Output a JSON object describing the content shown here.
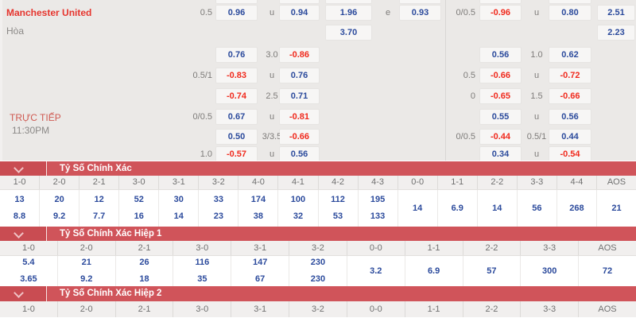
{
  "match": {
    "home": "Manchester United",
    "draw_label": "Hòa",
    "live_label": "TRỰC TIẾP",
    "time": "11:30PM"
  },
  "odds_grid": {
    "rows": [
      {
        "cells": [
          {
            "c": "B",
            "v": ""
          },
          {
            "c": "D",
            "v": ""
          },
          {
            "c": "E",
            "v": ""
          },
          {
            "c": "G",
            "v": ""
          },
          {
            "c": "I",
            "v": ""
          },
          {
            "c": "K",
            "v": ""
          }
        ]
      },
      {
        "cells": [
          {
            "c": "A",
            "v": "0.5",
            "t": "hdc"
          },
          {
            "c": "B",
            "v": "0.96",
            "t": "pos"
          },
          {
            "c": "C",
            "v": "u",
            "t": "hdc"
          },
          {
            "c": "D",
            "v": "0.94",
            "t": "pos"
          },
          {
            "c": "E",
            "v": "1.96",
            "t": "pos"
          },
          {
            "c": "F",
            "v": "e",
            "t": "hdc"
          },
          {
            "c": "G",
            "v": "0.93",
            "t": "pos"
          },
          {
            "c": "H",
            "v": "0/0.5",
            "t": "hdc"
          },
          {
            "c": "I",
            "v": "-0.96",
            "t": "neg"
          },
          {
            "c": "J",
            "v": "u",
            "t": "hdc"
          },
          {
            "c": "K",
            "v": "0.80",
            "t": "pos"
          },
          {
            "c": "L",
            "v": "2.51",
            "t": "pos"
          }
        ]
      },
      {
        "cells": [
          {
            "c": "E",
            "v": "3.70",
            "t": "pos"
          },
          {
            "c": "L",
            "v": "2.23",
            "t": "pos"
          }
        ]
      },
      {
        "cells": [
          {
            "c": "B",
            "v": "0.76",
            "t": "pos"
          },
          {
            "c": "C",
            "v": "3.0",
            "t": "hdc"
          },
          {
            "c": "D",
            "v": "-0.86",
            "t": "neg"
          },
          {
            "c": "I",
            "v": "0.56",
            "t": "pos"
          },
          {
            "c": "J",
            "v": "1.0",
            "t": "hdc"
          },
          {
            "c": "K",
            "v": "0.62",
            "t": "pos"
          }
        ]
      },
      {
        "cells": [
          {
            "c": "A",
            "v": "0.5/1",
            "t": "hdc"
          },
          {
            "c": "B",
            "v": "-0.83",
            "t": "neg"
          },
          {
            "c": "C",
            "v": "u",
            "t": "hdc"
          },
          {
            "c": "D",
            "v": "0.76",
            "t": "pos"
          },
          {
            "c": "H",
            "v": "0.5",
            "t": "hdc"
          },
          {
            "c": "I",
            "v": "-0.66",
            "t": "neg"
          },
          {
            "c": "J",
            "v": "u",
            "t": "hdc"
          },
          {
            "c": "K",
            "v": "-0.72",
            "t": "neg"
          }
        ]
      },
      {
        "cells": [
          {
            "c": "B",
            "v": "-0.74",
            "t": "neg"
          },
          {
            "c": "C",
            "v": "2.5",
            "t": "hdc"
          },
          {
            "c": "D",
            "v": "0.71",
            "t": "pos"
          },
          {
            "c": "H",
            "v": "0",
            "t": "hdc"
          },
          {
            "c": "I",
            "v": "-0.65",
            "t": "neg"
          },
          {
            "c": "J",
            "v": "1.5",
            "t": "hdc"
          },
          {
            "c": "K",
            "v": "-0.66",
            "t": "neg"
          }
        ]
      },
      {
        "cells": [
          {
            "c": "A",
            "v": "0/0.5",
            "t": "hdc"
          },
          {
            "c": "B",
            "v": "0.67",
            "t": "pos"
          },
          {
            "c": "C",
            "v": "u",
            "t": "hdc"
          },
          {
            "c": "D",
            "v": "-0.81",
            "t": "neg"
          },
          {
            "c": "I",
            "v": "0.55",
            "t": "pos"
          },
          {
            "c": "J",
            "v": "u",
            "t": "hdc"
          },
          {
            "c": "K",
            "v": "0.56",
            "t": "pos"
          }
        ]
      },
      {
        "cells": [
          {
            "c": "B",
            "v": "0.50",
            "t": "pos"
          },
          {
            "c": "C",
            "v": "3/3.5",
            "t": "hdc"
          },
          {
            "c": "D",
            "v": "-0.66",
            "t": "neg"
          },
          {
            "c": "H",
            "v": "0/0.5",
            "t": "hdc"
          },
          {
            "c": "I",
            "v": "-0.44",
            "t": "neg"
          },
          {
            "c": "J",
            "v": "0.5/1",
            "t": "hdc"
          },
          {
            "c": "K",
            "v": "0.44",
            "t": "pos"
          }
        ]
      },
      {
        "cells": [
          {
            "c": "A",
            "v": "1.0",
            "t": "hdc"
          },
          {
            "c": "B",
            "v": "-0.57",
            "t": "neg"
          },
          {
            "c": "C",
            "v": "u",
            "t": "hdc"
          },
          {
            "c": "D",
            "v": "0.56",
            "t": "pos"
          },
          {
            "c": "I",
            "v": "0.34",
            "t": "pos"
          },
          {
            "c": "J",
            "v": "u",
            "t": "hdc"
          },
          {
            "c": "K",
            "v": "-0.54",
            "t": "neg"
          }
        ]
      }
    ]
  },
  "sections": [
    {
      "title": "Tỷ Số Chính Xác",
      "columns": [
        {
          "h": "1-0",
          "a": "13",
          "b": "8.8"
        },
        {
          "h": "2-0",
          "a": "20",
          "b": "9.2"
        },
        {
          "h": "2-1",
          "a": "12",
          "b": "7.7"
        },
        {
          "h": "3-0",
          "a": "52",
          "b": "16"
        },
        {
          "h": "3-1",
          "a": "30",
          "b": "14"
        },
        {
          "h": "3-2",
          "a": "33",
          "b": "23"
        },
        {
          "h": "4-0",
          "a": "174",
          "b": "38"
        },
        {
          "h": "4-1",
          "a": "100",
          "b": "32"
        },
        {
          "h": "4-2",
          "a": "112",
          "b": "53"
        },
        {
          "h": "4-3",
          "a": "195",
          "b": "133"
        },
        {
          "h": "0-0",
          "m": "14"
        },
        {
          "h": "1-1",
          "m": "6.9"
        },
        {
          "h": "2-2",
          "m": "14"
        },
        {
          "h": "3-3",
          "m": "56"
        },
        {
          "h": "4-4",
          "m": "268"
        },
        {
          "h": "AOS",
          "m": "21"
        }
      ]
    },
    {
      "title": "Tỷ Số Chính Xác Hiệp 1",
      "columns": [
        {
          "h": "1-0",
          "a": "5.4",
          "b": "3.65"
        },
        {
          "h": "2-0",
          "a": "21",
          "b": "9.2"
        },
        {
          "h": "2-1",
          "a": "26",
          "b": "18"
        },
        {
          "h": "3-0",
          "a": "116",
          "b": "35"
        },
        {
          "h": "3-1",
          "a": "147",
          "b": "67"
        },
        {
          "h": "3-2",
          "a": "230",
          "b": "230"
        },
        {
          "h": "0-0",
          "m": "3.2"
        },
        {
          "h": "1-1",
          "m": "6.9"
        },
        {
          "h": "2-2",
          "m": "57"
        },
        {
          "h": "3-3",
          "m": "300"
        },
        {
          "h": "AOS",
          "m": "72"
        }
      ]
    },
    {
      "title": "Tỷ Số Chính Xác Hiệp 2",
      "columns": [
        {
          "h": "1-0"
        },
        {
          "h": "2-0"
        },
        {
          "h": "2-1"
        },
        {
          "h": "3-0"
        },
        {
          "h": "3-1"
        },
        {
          "h": "3-2"
        },
        {
          "h": "0-0"
        },
        {
          "h": "1-1"
        },
        {
          "h": "2-2"
        },
        {
          "h": "3-3"
        },
        {
          "h": "AOS"
        }
      ]
    }
  ],
  "colors": {
    "positive_odds": "#2b4a9c",
    "negative_odds": "#f02a1d",
    "section_bar": "#d0545a",
    "team_red": "#e6352e",
    "panel_bg": "#ebe9e7"
  }
}
